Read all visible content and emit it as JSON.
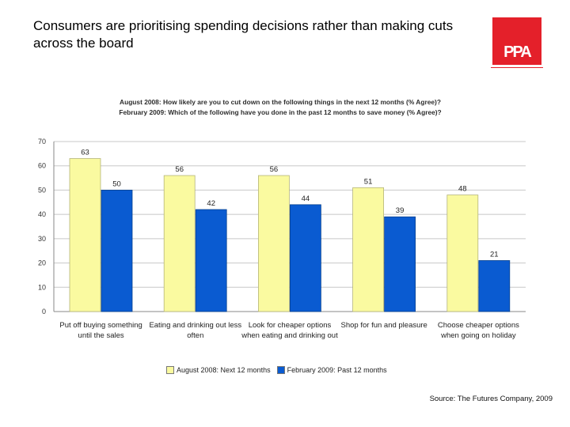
{
  "slide": {
    "title": "Consumers are prioritising spending decisions rather than making cuts across the board",
    "logo_text": "PPA",
    "source": "Source: The Futures Company, 2009"
  },
  "chart_data": {
    "type": "bar",
    "questions": [
      "August 2008: How likely are you to cut down on the following things in the next 12 months (% Agree)?",
      "February 2009: Which of the following have you done in the past 12 months to save money (% Agree)?"
    ],
    "categories": [
      "Put off buying something until the sales",
      "Eating and drinking out less often",
      "Look for cheaper options when eating and drinking out",
      "Shop for fun and pleasure",
      "Choose cheaper options when going on holiday"
    ],
    "series": [
      {
        "name": "August 2008: Next 12 months",
        "color": "#fafaa0",
        "values": [
          63,
          56,
          56,
          51,
          48
        ]
      },
      {
        "name": "February 2009: Past 12 months",
        "color": "#0a5bd1",
        "values": [
          50,
          42,
          44,
          39,
          21
        ]
      }
    ],
    "yticks": [
      0,
      10,
      20,
      30,
      40,
      50,
      60,
      70
    ],
    "ylim": [
      0,
      70
    ],
    "grid": true,
    "legend_position": "bottom"
  }
}
